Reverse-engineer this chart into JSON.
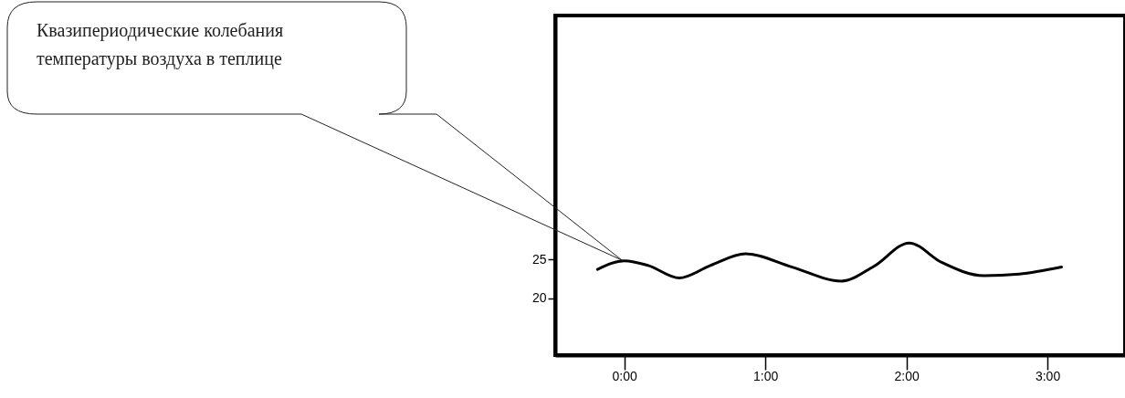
{
  "chart_data": {
    "type": "line",
    "x": [
      -0.19,
      0.0,
      0.17,
      0.39,
      0.61,
      0.86,
      1.19,
      1.54,
      1.77,
      2.02,
      2.25,
      2.55,
      2.8,
      3.1
    ],
    "values": [
      23.7,
      24.8,
      24.2,
      22.6,
      24.2,
      25.7,
      24.0,
      22.2,
      24.1,
      27.1,
      24.6,
      22.9,
      23.1,
      24.0
    ],
    "color": "#000000",
    "xlim": [
      -0.49,
      3.55
    ],
    "xticks": [
      {
        "value": 0,
        "label": "0:00"
      },
      {
        "value": 1,
        "label": "1:00"
      },
      {
        "value": 2,
        "label": "2:00"
      },
      {
        "value": 3,
        "label": "3:00"
      }
    ],
    "ylim": [
      12.7,
      56.3
    ],
    "yticks": [
      20,
      25
    ],
    "grid": false,
    "annotations": [
      "Квазипериодические колебания\nтемпературы воздуха в теплице"
    ]
  }
}
